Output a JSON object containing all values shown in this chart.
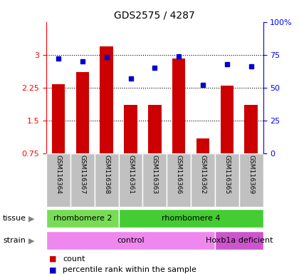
{
  "title": "GDS2575 / 4287",
  "samples": [
    "GSM116364",
    "GSM116367",
    "GSM116368",
    "GSM116361",
    "GSM116363",
    "GSM116366",
    "GSM116362",
    "GSM116365",
    "GSM116369"
  ],
  "counts": [
    2.33,
    2.6,
    3.2,
    1.85,
    1.85,
    2.92,
    1.1,
    2.3,
    1.85
  ],
  "percentiles": [
    72,
    70,
    73,
    57,
    65,
    74,
    52,
    68,
    66
  ],
  "ymin": 0.75,
  "ymax": 3.75,
  "yticks_left": [
    0.75,
    1.5,
    2.25,
    3.0
  ],
  "ytick_labels_left": [
    "0.75",
    "1.5",
    "2.25",
    "3"
  ],
  "right_pct_ticks": [
    0,
    25,
    50,
    75,
    100
  ],
  "right_pct_labels": [
    "0",
    "25",
    "50",
    "75",
    "100%"
  ],
  "bar_color": "#cc0000",
  "dot_color": "#0000cc",
  "tissue_groups": [
    {
      "label": "rhombomere 2",
      "start": 0,
      "end": 3,
      "color": "#77dd55"
    },
    {
      "label": "rhombomere 4",
      "start": 3,
      "end": 9,
      "color": "#44cc33"
    }
  ],
  "strain_groups": [
    {
      "label": "control",
      "start": 0,
      "end": 7,
      "color": "#ee88ee"
    },
    {
      "label": "Hoxb1a deficient",
      "start": 7,
      "end": 9,
      "color": "#cc55cc"
    }
  ],
  "legend_count_label": "count",
  "legend_pct_label": "percentile rank within the sample",
  "xlabels_bg": "#c0c0c0",
  "xlabels_sep_color": "#ffffff"
}
